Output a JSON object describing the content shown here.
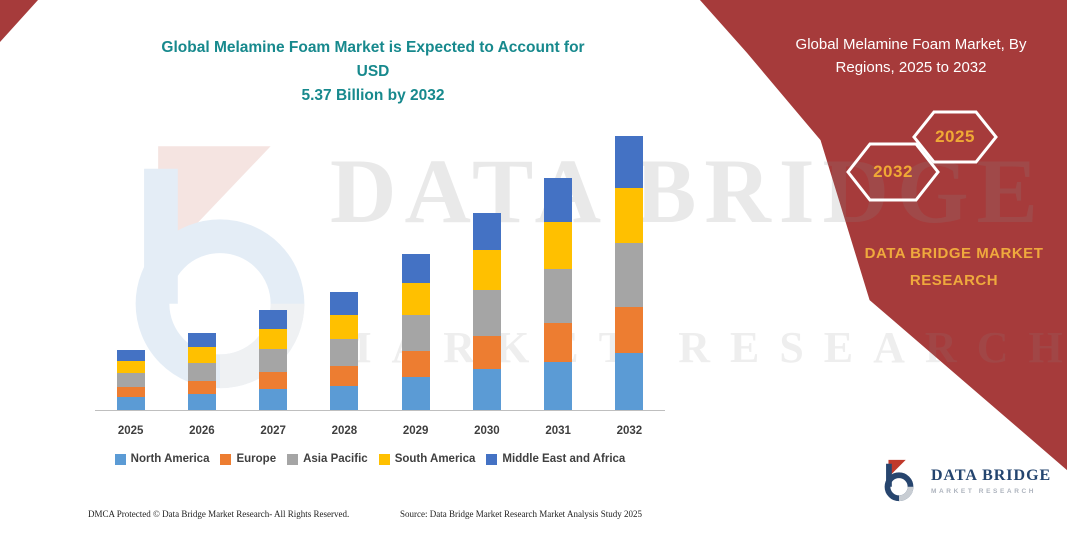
{
  "colors": {
    "banner_red": "#A63B3B",
    "title_teal": "#17898D",
    "gold": "#EFA93D",
    "logo_navy": "#24456F"
  },
  "main_title": {
    "line1": "Global Melamine Foam Market is Expected to Account for USD",
    "line2": "5.37 Billion by 2032"
  },
  "banner": {
    "title_lines": [
      "Global Melamine Foam Market, By",
      "Regions, 2025 to 2032"
    ],
    "hexagon_years": [
      "2032",
      "2025"
    ],
    "brand_lines": [
      "DATA BRIDGE MARKET",
      "RESEARCH"
    ]
  },
  "watermark": {
    "line1": "DATA BRIDGE",
    "line2": "MARKET RESEARCH"
  },
  "chart_data": {
    "type": "bar",
    "stacked": true,
    "title": "Global Melamine Foam Market is Expected to Account for USD 5.37 Billion by 2032",
    "unit": "USD Billion",
    "categories": [
      "2025",
      "2026",
      "2027",
      "2028",
      "2029",
      "2030",
      "2031",
      "2032"
    ],
    "series": [
      {
        "name": "North America",
        "color": "#5B9BD5",
        "values": [
          0.25,
          0.32,
          0.41,
          0.48,
          0.64,
          0.8,
          0.95,
          1.11
        ]
      },
      {
        "name": "Europe",
        "color": "#ED7D31",
        "values": [
          0.2,
          0.26,
          0.33,
          0.39,
          0.52,
          0.65,
          0.77,
          0.9
        ]
      },
      {
        "name": "Asia Pacific",
        "color": "#A5A5A5",
        "values": [
          0.28,
          0.36,
          0.45,
          0.54,
          0.71,
          0.9,
          1.06,
          1.25
        ]
      },
      {
        "name": "South America",
        "color": "#FFC000",
        "values": [
          0.24,
          0.31,
          0.4,
          0.48,
          0.63,
          0.79,
          0.93,
          1.09
        ]
      },
      {
        "name": "Middle East and Africa",
        "color": "#4472C4",
        "values": [
          0.22,
          0.28,
          0.37,
          0.45,
          0.57,
          0.73,
          0.87,
          1.02
        ]
      }
    ],
    "totals": [
      1.19,
      1.53,
      1.96,
      2.34,
      3.07,
      3.87,
      4.58,
      5.37
    ],
    "ylim": [
      0,
      5.5
    ],
    "grid": false,
    "legend_position": "bottom"
  },
  "footer": {
    "dmca": "DMCA Protected © Data Bridge Market Research-  All Rights Reserved.",
    "source": "Source: Data Bridge Market Research  Market Analysis Study 2025",
    "logo_title": "DATA BRIDGE",
    "logo_subtitle": "MARKET RESEARCH"
  }
}
